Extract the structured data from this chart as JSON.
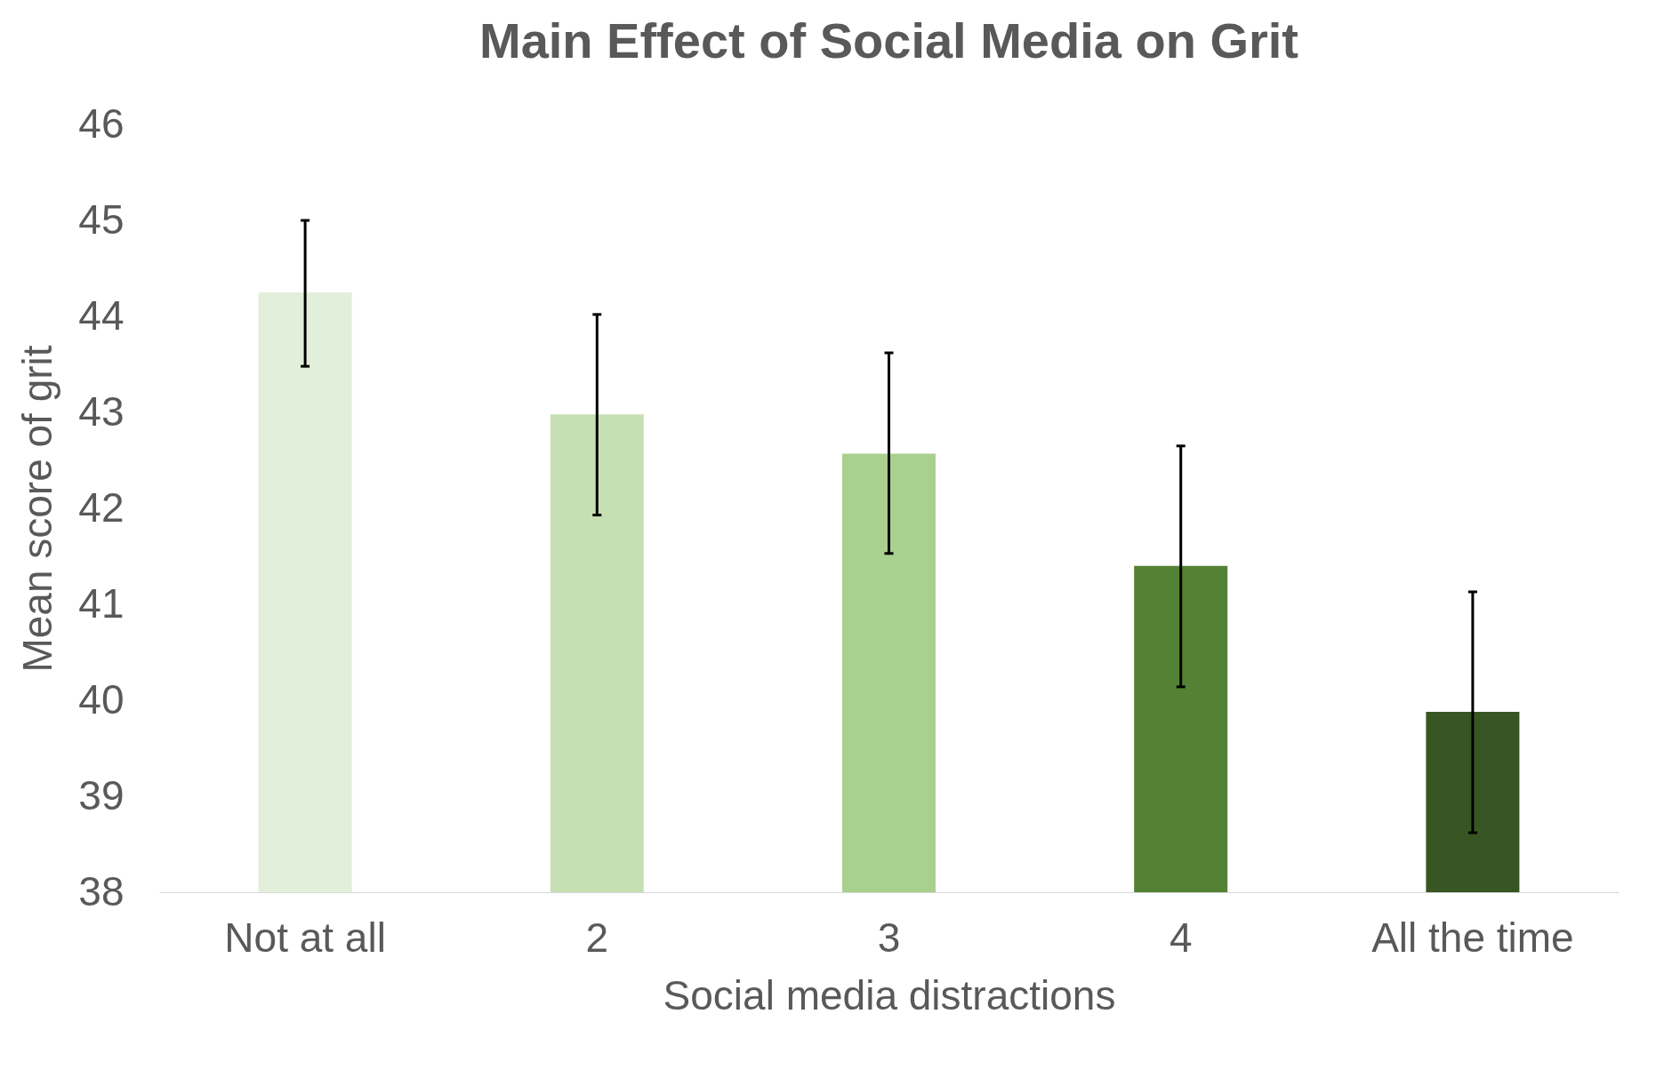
{
  "chart_data": {
    "type": "bar",
    "title": "Main Effect of Social Media on Grit",
    "xlabel": "Social media distractions",
    "ylabel": "Mean score of grit",
    "categories": [
      "Not at all",
      "2",
      "3",
      "4",
      "All the time"
    ],
    "values": [
      44.25,
      42.98,
      42.57,
      41.4,
      39.88
    ],
    "colors": [
      "#e2efda",
      "#c6e0b4",
      "#a9d08e",
      "#548235",
      "#375623"
    ],
    "errors": [
      [
        43.48,
        45.0
      ],
      [
        41.93,
        44.02
      ],
      [
        41.53,
        43.62
      ],
      [
        40.14,
        42.65
      ],
      [
        38.62,
        41.13
      ]
    ],
    "ylim": [
      38,
      46
    ],
    "yticks": [
      38,
      39,
      40,
      41,
      42,
      43,
      44,
      45,
      46
    ],
    "grid": false,
    "legend": false
  }
}
